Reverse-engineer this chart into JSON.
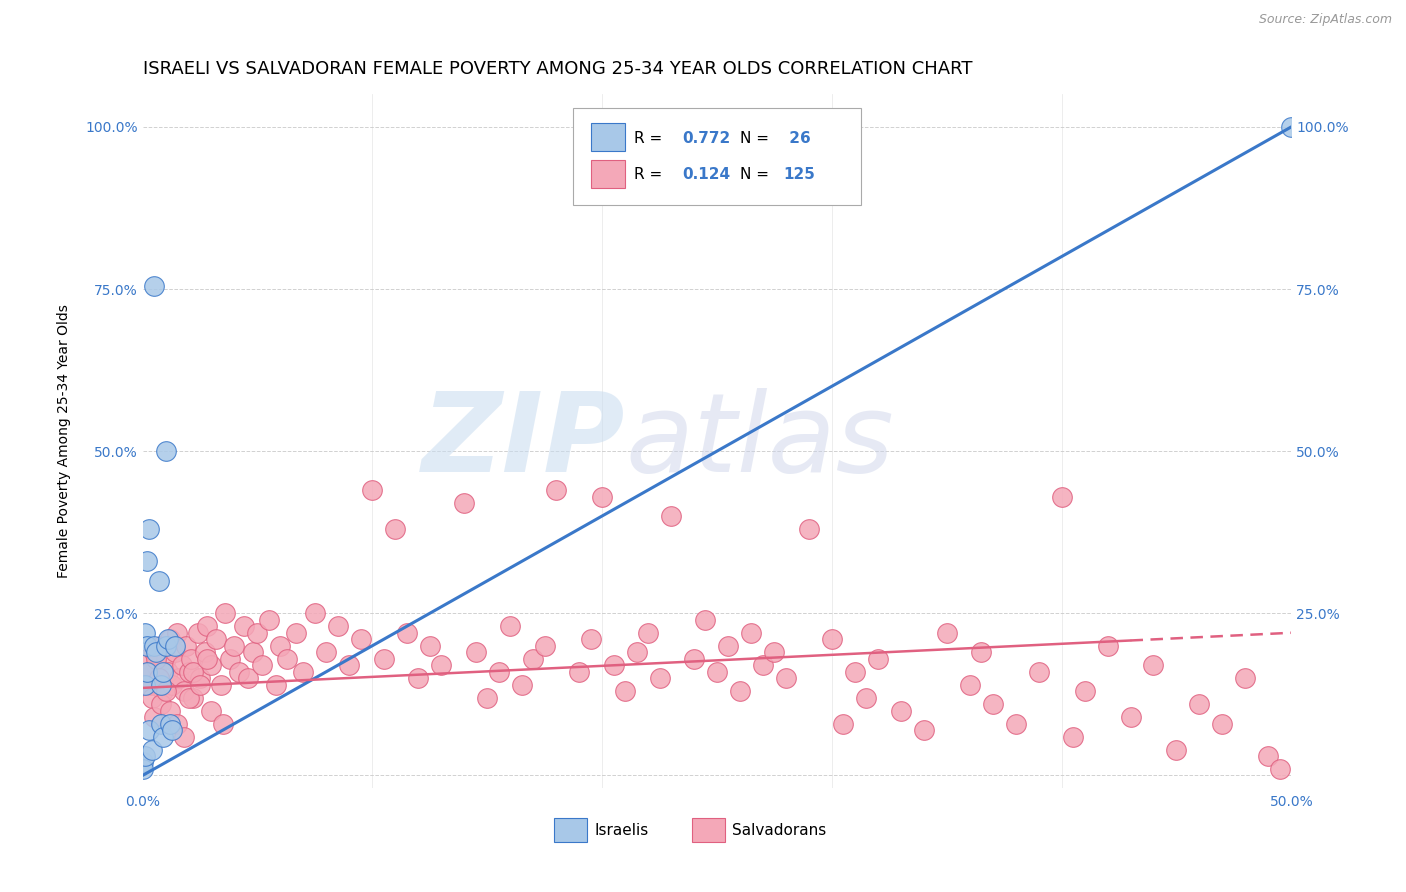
{
  "title": "ISRAELI VS SALVADORAN FEMALE POVERTY AMONG 25-34 YEAR OLDS CORRELATION CHART",
  "source": "Source: ZipAtlas.com",
  "ylabel": "Female Poverty Among 25-34 Year Olds",
  "xlim": [
    0.0,
    0.5
  ],
  "ylim": [
    -0.02,
    1.05
  ],
  "israeli_color": "#a8c8e8",
  "salvadoran_color": "#f4a8b8",
  "israeli_line_color": "#3a78c9",
  "salvadoran_line_color": "#e06080",
  "background_color": "#ffffff",
  "grid_color": "#cccccc",
  "tick_color": "#3a78c9",
  "title_fontsize": 13,
  "axis_label_fontsize": 10,
  "tick_fontsize": 10,
  "israeli_line_x0": 0.0,
  "israeli_line_y0": 0.0,
  "israeli_line_x1": 0.5,
  "israeli_line_y1": 1.0,
  "salvadoran_line_x0": 0.0,
  "salvadoran_line_y0": 0.135,
  "salvadoran_line_x1": 0.5,
  "salvadoran_line_y1": 0.22,
  "legend_r1": "0.772",
  "legend_n1": "26",
  "legend_r2": "0.124",
  "legend_n2": "125",
  "isr_x": [
    0.0,
    0.0,
    0.001,
    0.001,
    0.001,
    0.002,
    0.002,
    0.002,
    0.003,
    0.003,
    0.004,
    0.005,
    0.005,
    0.006,
    0.007,
    0.008,
    0.008,
    0.009,
    0.009,
    0.01,
    0.01,
    0.011,
    0.012,
    0.013,
    0.014,
    0.5
  ],
  "isr_y": [
    0.02,
    0.01,
    0.03,
    0.14,
    0.22,
    0.16,
    0.2,
    0.33,
    0.07,
    0.38,
    0.04,
    0.2,
    0.755,
    0.19,
    0.3,
    0.08,
    0.14,
    0.16,
    0.06,
    0.2,
    0.5,
    0.21,
    0.08,
    0.07,
    0.2,
    1.0
  ],
  "sal_x": [
    0.002,
    0.003,
    0.004,
    0.005,
    0.006,
    0.007,
    0.008,
    0.009,
    0.01,
    0.011,
    0.012,
    0.013,
    0.014,
    0.015,
    0.016,
    0.017,
    0.018,
    0.019,
    0.02,
    0.021,
    0.022,
    0.024,
    0.025,
    0.027,
    0.028,
    0.03,
    0.032,
    0.034,
    0.036,
    0.038,
    0.04,
    0.042,
    0.044,
    0.046,
    0.048,
    0.05,
    0.052,
    0.055,
    0.058,
    0.06,
    0.063,
    0.067,
    0.07,
    0.075,
    0.08,
    0.085,
    0.09,
    0.095,
    0.1,
    0.105,
    0.11,
    0.115,
    0.12,
    0.125,
    0.13,
    0.14,
    0.145,
    0.15,
    0.155,
    0.16,
    0.165,
    0.17,
    0.175,
    0.18,
    0.19,
    0.195,
    0.2,
    0.205,
    0.21,
    0.215,
    0.22,
    0.225,
    0.23,
    0.24,
    0.245,
    0.25,
    0.255,
    0.26,
    0.265,
    0.27,
    0.275,
    0.28,
    0.29,
    0.3,
    0.305,
    0.31,
    0.315,
    0.32,
    0.33,
    0.34,
    0.35,
    0.36,
    0.365,
    0.37,
    0.38,
    0.39,
    0.4,
    0.405,
    0.41,
    0.42,
    0.43,
    0.44,
    0.45,
    0.46,
    0.47,
    0.48,
    0.49,
    0.495,
    0.002,
    0.003,
    0.004,
    0.005,
    0.006,
    0.007,
    0.008,
    0.01,
    0.012,
    0.015,
    0.018,
    0.02,
    0.022,
    0.025,
    0.028,
    0.03,
    0.035
  ],
  "sal_y": [
    0.18,
    0.16,
    0.14,
    0.19,
    0.17,
    0.15,
    0.2,
    0.13,
    0.18,
    0.16,
    0.21,
    0.14,
    0.19,
    0.22,
    0.15,
    0.17,
    0.13,
    0.2,
    0.16,
    0.18,
    0.12,
    0.22,
    0.15,
    0.19,
    0.23,
    0.17,
    0.21,
    0.14,
    0.25,
    0.18,
    0.2,
    0.16,
    0.23,
    0.15,
    0.19,
    0.22,
    0.17,
    0.24,
    0.14,
    0.2,
    0.18,
    0.22,
    0.16,
    0.25,
    0.19,
    0.23,
    0.17,
    0.21,
    0.44,
    0.18,
    0.38,
    0.22,
    0.15,
    0.2,
    0.17,
    0.42,
    0.19,
    0.12,
    0.16,
    0.23,
    0.14,
    0.18,
    0.2,
    0.44,
    0.16,
    0.21,
    0.43,
    0.17,
    0.13,
    0.19,
    0.22,
    0.15,
    0.4,
    0.18,
    0.24,
    0.16,
    0.2,
    0.13,
    0.22,
    0.17,
    0.19,
    0.15,
    0.38,
    0.21,
    0.08,
    0.16,
    0.12,
    0.18,
    0.1,
    0.07,
    0.22,
    0.14,
    0.19,
    0.11,
    0.08,
    0.16,
    0.43,
    0.06,
    0.13,
    0.2,
    0.09,
    0.17,
    0.04,
    0.11,
    0.08,
    0.15,
    0.03,
    0.01,
    0.14,
    0.16,
    0.12,
    0.09,
    0.18,
    0.15,
    0.11,
    0.13,
    0.1,
    0.08,
    0.06,
    0.12,
    0.16,
    0.14,
    0.18,
    0.1,
    0.08
  ]
}
